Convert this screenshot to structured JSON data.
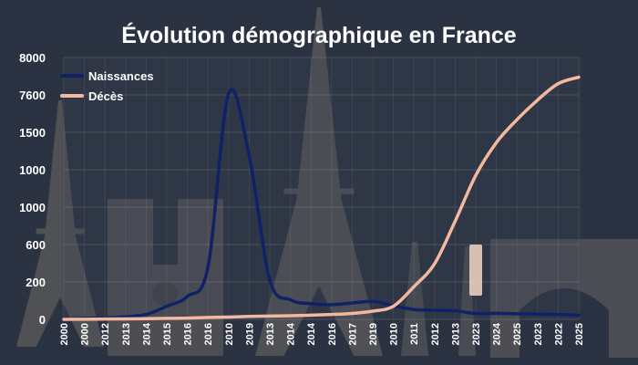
{
  "colors": {
    "background": "#2b3342",
    "plot_tint": "#3a4254",
    "monument": "#6e6a66",
    "naissances": "#0f2266",
    "deces": "#f2b8a0",
    "highlight": "#f6d6c4"
  },
  "chart_data": {
    "type": "line",
    "title": "Évolution démographique en France",
    "xlabel": "",
    "ylabel": "",
    "grid": true,
    "legend_position": "top-left",
    "background_image": "paris-monuments",
    "y_ticks": [
      "8000",
      "7600",
      "1500",
      "1000",
      "1000",
      "600",
      "200",
      "0"
    ],
    "categories": [
      "2000",
      "2000",
      "2012",
      "2013",
      "2014",
      "2015",
      "2016",
      "2016",
      "2010",
      "2019",
      "2013",
      "2014",
      "2014",
      "2016",
      "2017",
      "2019",
      "2010",
      "2011",
      "2012",
      "2013",
      "2023",
      "2024",
      "2025",
      "2023",
      "2022",
      "2025"
    ],
    "series": [
      {
        "name": "Naissances",
        "color": "#0f2266",
        "values": [
          0,
          30,
          40,
          80,
          150,
          400,
          700,
          1600,
          6900,
          5000,
          1200,
          600,
          480,
          450,
          500,
          550,
          420,
          300,
          280,
          260,
          180,
          185,
          170,
          160,
          150,
          130
        ]
      },
      {
        "name": "Décès",
        "color": "#f2b8a0",
        "values": [
          0,
          5,
          10,
          15,
          20,
          30,
          40,
          60,
          70,
          90,
          100,
          110,
          130,
          150,
          180,
          250,
          400,
          1000,
          1700,
          3000,
          4400,
          5400,
          6100,
          6700,
          7200,
          7400
        ]
      }
    ],
    "highlight_category": "2023"
  }
}
